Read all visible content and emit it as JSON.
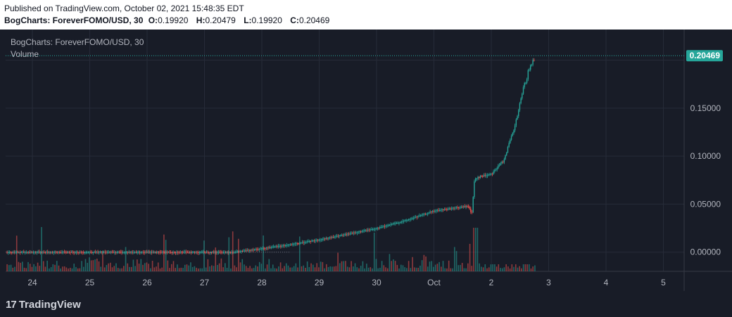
{
  "header": {
    "published": "Published on TradingView.com, October 02, 2021 15:48:35 EDT",
    "symbol_line": "BogCharts: ForeverFOMO/USD, 30",
    "o_label": "O:",
    "o_value": "0.19920",
    "h_label": "H:",
    "h_value": "0.20479",
    "l_label": "L:",
    "l_value": "0.19920",
    "c_label": "C:",
    "c_value": "0.20469"
  },
  "legend": {
    "title": "BogCharts: ForeverFOMO/USD, 30",
    "volume": "Volume"
  },
  "footer": {
    "brand": "TradingView",
    "logo_glyph": "17"
  },
  "colors": {
    "up": "#26a69a",
    "down": "#ef5350",
    "background": "#181c27",
    "grid": "#262b38",
    "text": "#b2b5be",
    "last_price_bg": "#26a69a"
  },
  "chart_data": {
    "type": "candlestick",
    "title": "",
    "x_ticks": [
      "24",
      "25",
      "26",
      "27",
      "28",
      "29",
      "30",
      "Oct",
      "2",
      "3",
      "4",
      "5"
    ],
    "y_ticks": [
      "0.00000",
      "0.05000",
      "0.10000",
      "0.15000"
    ],
    "last_price": "0.20469",
    "ylim": [
      -0.02,
      0.21
    ],
    "price_path": [
      {
        "t": 0,
        "p": 0.0
      },
      {
        "t": 3.5,
        "p": 0.0
      },
      {
        "t": 4.5,
        "p": 0.008
      },
      {
        "t": 5.0,
        "p": 0.013
      },
      {
        "t": 6.0,
        "p": 0.025
      },
      {
        "t": 6.5,
        "p": 0.033
      },
      {
        "t": 7.0,
        "p": 0.043
      },
      {
        "t": 7.6,
        "p": 0.048
      },
      {
        "t": 7.65,
        "p": 0.038
      },
      {
        "t": 7.7,
        "p": 0.077
      },
      {
        "t": 8.0,
        "p": 0.082
      },
      {
        "t": 8.2,
        "p": 0.095
      },
      {
        "t": 8.4,
        "p": 0.13
      },
      {
        "t": 8.55,
        "p": 0.17
      },
      {
        "t": 8.65,
        "p": 0.19
      },
      {
        "t": 8.75,
        "p": 0.204
      }
    ],
    "volume": "relative histogram, peaks around day 28 and Oct"
  }
}
